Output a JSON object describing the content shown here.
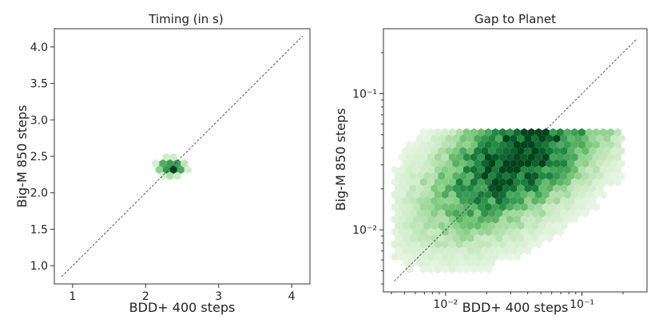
{
  "chart_data": [
    {
      "type": "hexbin",
      "title": "Timing (in s)",
      "xlabel": "BDD+ 400 steps",
      "ylabel": "Big-M 850 steps",
      "scale": "linear",
      "xlim": [
        0.75,
        4.25
      ],
      "ylim": [
        0.75,
        4.25
      ],
      "xticks": [
        1,
        2,
        3,
        4
      ],
      "xtick_labels": [
        "1",
        "2",
        "3",
        "4"
      ],
      "yticks": [
        1.0,
        1.5,
        2.0,
        2.5,
        3.0,
        3.5,
        4.0
      ],
      "ytick_labels": [
        "1.0",
        "1.5",
        "2.0",
        "2.5",
        "3.0",
        "3.5",
        "4.0"
      ],
      "reference_line": {
        "from": [
          0.85,
          0.85
        ],
        "to": [
          4.15,
          4.15
        ],
        "style": "dashed"
      },
      "cluster": {
        "x_center": 2.35,
        "y_center": 2.35,
        "x_spread": 0.12,
        "y_spread": 0.08,
        "max_density": 1.0
      },
      "colormap": "Greens"
    },
    {
      "type": "hexbin",
      "title": "Gap to Planet",
      "xlabel": "BDD+ 400 steps",
      "ylabel": "Big-M 850 steps",
      "scale": "log",
      "xlim": [
        0.0035,
        0.3
      ],
      "ylim": [
        0.0035,
        0.3
      ],
      "xticks": [
        0.01,
        0.1
      ],
      "xtick_labels": [
        "10⁻²",
        "10⁻¹"
      ],
      "yticks": [
        0.01,
        0.1
      ],
      "ytick_labels": [
        "10⁻²",
        "10⁻¹"
      ],
      "reference_line": {
        "from": [
          0.0042,
          0.0042
        ],
        "to": [
          0.25,
          0.25
        ],
        "style": "dashed"
      },
      "cluster": {
        "x_center": 0.035,
        "y_center": 0.035,
        "x_min": 0.004,
        "x_max": 0.2,
        "y_min": 0.005,
        "y_max": 0.055,
        "max_density": 1.0
      },
      "colormap": "Greens"
    }
  ]
}
